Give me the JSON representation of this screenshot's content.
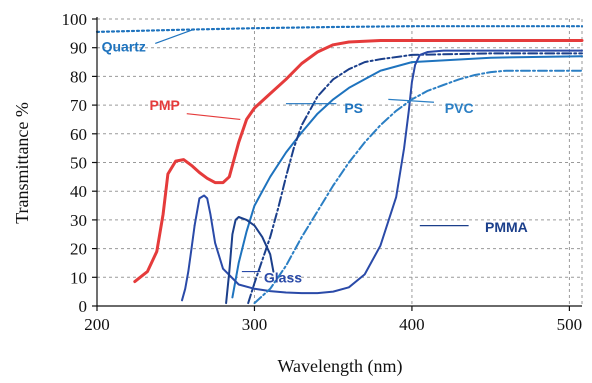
{
  "chart_data": {
    "type": "line",
    "title": "",
    "xlabel": "Wavelength (nm)",
    "ylabel": "Transmittance %",
    "xlim": [
      200,
      508
    ],
    "ylim": [
      0,
      100
    ],
    "xticks": [
      200,
      300,
      400,
      500
    ],
    "yticks": [
      0,
      10,
      20,
      30,
      40,
      50,
      60,
      70,
      80,
      90,
      100
    ],
    "grid": true,
    "legend": "none (series labelled inline)",
    "series": [
      {
        "name": "Quartz",
        "color": "#1e73be",
        "style": "dotted",
        "x": [
          200,
          250,
          300,
          350,
          400,
          450,
          508
        ],
        "y": [
          95.5,
          96.2,
          96.8,
          97.2,
          97.5,
          97.5,
          97.5
        ]
      },
      {
        "name": "PMP",
        "color": "#e53b3b",
        "style": "solid",
        "x": [
          224,
          232,
          238,
          242,
          245,
          250,
          255,
          260,
          265,
          270,
          275,
          280,
          284,
          290,
          295,
          300,
          310,
          320,
          330,
          340,
          350,
          360,
          380,
          400,
          450,
          508
        ],
        "y": [
          8.5,
          12,
          19,
          32,
          46,
          50.5,
          51,
          49,
          46.5,
          44.5,
          43,
          43,
          45,
          57,
          65,
          69,
          74,
          79,
          84.5,
          88.5,
          91,
          92,
          92.5,
          92.5,
          92.5,
          92.5
        ]
      },
      {
        "name": "PS",
        "color": "#1e73be",
        "style": "solid",
        "x": [
          286,
          290,
          295,
          300,
          310,
          320,
          330,
          340,
          350,
          360,
          370,
          380,
          400,
          450,
          508
        ],
        "y": [
          3,
          15,
          26,
          35,
          45,
          53.5,
          60.5,
          67,
          72,
          76,
          79,
          82,
          85,
          86.5,
          87
        ]
      },
      {
        "name": "PS-dashed",
        "color": "#1b3f8b",
        "style": "dashdot",
        "x": [
          296,
          300,
          305,
          310,
          315,
          320,
          325,
          330,
          340,
          350,
          360,
          370,
          380,
          400,
          450,
          508
        ],
        "y": [
          1,
          8,
          16,
          24,
          34,
          45,
          55,
          63,
          73,
          79,
          82.5,
          85,
          86,
          87.5,
          88,
          88
        ]
      },
      {
        "name": "Glass",
        "color": "#2a4aa8",
        "style": "solid",
        "x": [
          262,
          265,
          268,
          270,
          272,
          275,
          280,
          290,
          300,
          310,
          320,
          330,
          340,
          350,
          360,
          370,
          380,
          390,
          395,
          398,
          400,
          402,
          405,
          410,
          420,
          450,
          508
        ],
        "y": [
          28,
          37.5,
          38.5,
          37.5,
          32,
          22,
          13,
          7.5,
          6,
          5.2,
          4.7,
          4.5,
          4.5,
          5,
          6.5,
          11,
          21,
          38,
          55,
          68,
          78,
          84,
          87.5,
          88.5,
          89,
          89,
          89
        ]
      },
      {
        "name": "Glass-left",
        "color": "#2a4aa8",
        "style": "solid",
        "x": [
          254,
          256,
          258,
          260,
          262
        ],
        "y": [
          2,
          6,
          12,
          20,
          28
        ]
      },
      {
        "name": "PMMA",
        "color": "#1b3f8b",
        "style": "solid",
        "x": [
          282,
          284,
          286,
          288,
          290,
          295,
          300,
          305,
          310,
          312
        ],
        "y": [
          1,
          12,
          25,
          30,
          31,
          30,
          28,
          24,
          18,
          12
        ]
      },
      {
        "name": "PVC",
        "color": "#2b7fc4",
        "style": "dashdot",
        "x": [
          300,
          310,
          320,
          330,
          340,
          350,
          360,
          370,
          380,
          390,
          400,
          410,
          420,
          430,
          440,
          450,
          460,
          480,
          508
        ],
        "y": [
          1,
          6,
          14,
          24,
          33,
          42,
          50,
          57,
          63,
          68,
          72,
          75,
          77,
          79,
          80.5,
          81.5,
          82,
          82,
          82
        ]
      }
    ],
    "annotations": [
      {
        "text": "Quartz",
        "color": "#1e73be"
      },
      {
        "text": "PMP",
        "color": "#e53b3b"
      },
      {
        "text": "PS",
        "color": "#1e73be"
      },
      {
        "text": "PVC",
        "color": "#2b7fc4"
      },
      {
        "text": "PMMA",
        "color": "#1b3f8b"
      },
      {
        "text": "Glass",
        "color": "#2a4aa8"
      }
    ]
  }
}
